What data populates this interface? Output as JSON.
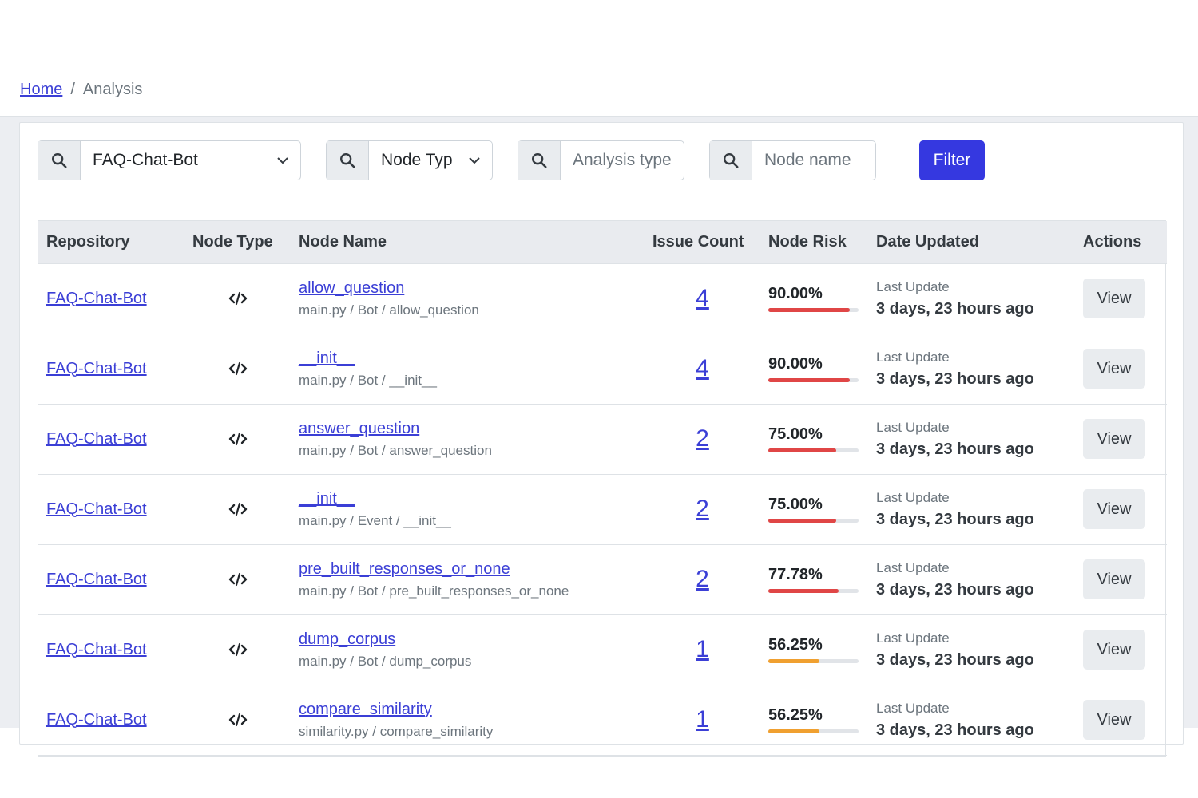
{
  "breadcrumb": {
    "home": "Home",
    "separator": "/",
    "current": "Analysis"
  },
  "filters": {
    "repository": {
      "value": "FAQ-Chat-Bot",
      "icon": "search-icon"
    },
    "node_type": {
      "value": "Node Typ",
      "icon": "search-icon"
    },
    "analysis_type": {
      "placeholder": "Analysis type",
      "icon": "search-icon"
    },
    "node_name": {
      "placeholder": "Node name",
      "icon": "search-icon"
    },
    "filter_button": "Filter"
  },
  "colors": {
    "accent": "#3538e0",
    "link": "#3b3fd6",
    "risk_high": "#e04646",
    "risk_medium": "#f0a030"
  },
  "table": {
    "headers": [
      "Repository",
      "Node Type",
      "Node Name",
      "Issue Count",
      "Node Risk",
      "Date Updated",
      "Actions"
    ],
    "rows": [
      {
        "repo": "FAQ-Chat-Bot",
        "node_type_icon": "code-icon",
        "name": "allow_question",
        "path": "main.py / Bot / allow_question",
        "issues": "4",
        "risk": "90.00%",
        "risk_fraction": 0.9,
        "risk_color": "#e04646",
        "update_label": "Last Update",
        "updated": "3 days, 23 hours ago",
        "action": "View"
      },
      {
        "repo": "FAQ-Chat-Bot",
        "node_type_icon": "code-icon",
        "name": "__init__",
        "path": "main.py / Bot / __init__",
        "issues": "4",
        "risk": "90.00%",
        "risk_fraction": 0.9,
        "risk_color": "#e04646",
        "update_label": "Last Update",
        "updated": "3 days, 23 hours ago",
        "action": "View"
      },
      {
        "repo": "FAQ-Chat-Bot",
        "node_type_icon": "code-icon",
        "name": "answer_question",
        "path": "main.py / Bot / answer_question",
        "issues": "2",
        "risk": "75.00%",
        "risk_fraction": 0.75,
        "risk_color": "#e04646",
        "update_label": "Last Update",
        "updated": "3 days, 23 hours ago",
        "action": "View"
      },
      {
        "repo": "FAQ-Chat-Bot",
        "node_type_icon": "code-icon",
        "name": "__init__",
        "path": "main.py / Event / __init__",
        "issues": "2",
        "risk": "75.00%",
        "risk_fraction": 0.75,
        "risk_color": "#e04646",
        "update_label": "Last Update",
        "updated": "3 days, 23 hours ago",
        "action": "View"
      },
      {
        "repo": "FAQ-Chat-Bot",
        "node_type_icon": "code-icon",
        "name": "pre_built_responses_or_none",
        "path": "main.py / Bot / pre_built_responses_or_none",
        "issues": "2",
        "risk": "77.78%",
        "risk_fraction": 0.7778,
        "risk_color": "#e04646",
        "update_label": "Last Update",
        "updated": "3 days, 23 hours ago",
        "action": "View"
      },
      {
        "repo": "FAQ-Chat-Bot",
        "node_type_icon": "code-icon",
        "name": "dump_corpus",
        "path": "main.py / Bot / dump_corpus",
        "issues": "1",
        "risk": "56.25%",
        "risk_fraction": 0.5625,
        "risk_color": "#f0a030",
        "update_label": "Last Update",
        "updated": "3 days, 23 hours ago",
        "action": "View"
      },
      {
        "repo": "FAQ-Chat-Bot",
        "node_type_icon": "code-icon",
        "name": "compare_similarity",
        "path": "similarity.py / compare_similarity",
        "issues": "1",
        "risk": "56.25%",
        "risk_fraction": 0.5625,
        "risk_color": "#f0a030",
        "update_label": "Last Update",
        "updated": "3 days, 23 hours ago",
        "action": "View"
      }
    ]
  }
}
